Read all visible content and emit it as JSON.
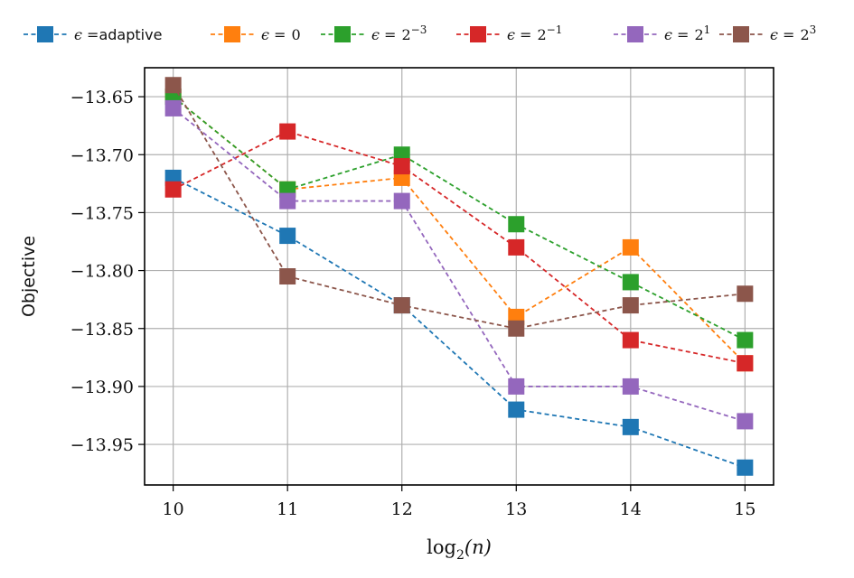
{
  "chart_data": {
    "type": "line",
    "xlabel": "log",
    "xlabel_sub": "2",
    "xlabel_arg": "(n)",
    "ylabel": "Objective",
    "xlim": [
      9.75,
      15.25
    ],
    "ylim": [
      -13.985,
      -13.625
    ],
    "x": [
      10,
      11,
      12,
      13,
      14,
      15
    ],
    "xticks": [
      "10",
      "11",
      "12",
      "13",
      "14",
      "15"
    ],
    "yticks": [
      -13.65,
      -13.7,
      -13.75,
      -13.8,
      -13.85,
      -13.9,
      -13.95
    ],
    "ytick_labels": [
      "−13.65",
      "−13.70",
      "−13.75",
      "−13.80",
      "−13.85",
      "−13.90",
      "−13.95"
    ],
    "grid": true,
    "legend_position": "top, outside plot",
    "series": [
      {
        "legend_prefix": "ϵ =",
        "legend_value": "adaptive",
        "color": "#1f77b4",
        "values": [
          -13.72,
          -13.77,
          -13.83,
          -13.92,
          -13.935,
          -13.97
        ]
      },
      {
        "legend_prefix": "ϵ =",
        "legend_value": "0",
        "color": "#ff7f0e",
        "values": [
          -13.65,
          -13.73,
          -13.72,
          -13.84,
          -13.78,
          -13.88
        ]
      },
      {
        "legend_prefix": "ϵ =",
        "legend_value": "2",
        "legend_sup": "−3",
        "color": "#2ca02c",
        "values": [
          -13.65,
          -13.73,
          -13.7,
          -13.76,
          -13.81,
          -13.86
        ]
      },
      {
        "legend_prefix": "ϵ =",
        "legend_value": "2",
        "legend_sup": "−1",
        "color": "#d62728",
        "values": [
          -13.73,
          -13.68,
          -13.71,
          -13.78,
          -13.86,
          -13.88
        ]
      },
      {
        "legend_prefix": "ϵ =",
        "legend_value": "2",
        "legend_sup": "1",
        "color": "#9467bd",
        "values": [
          -13.66,
          -13.74,
          -13.74,
          -13.9,
          -13.9,
          -13.93
        ]
      },
      {
        "legend_prefix": "ϵ =",
        "legend_value": "2",
        "legend_sup": "3",
        "color": "#8c564b",
        "values": [
          -13.64,
          -13.805,
          -13.83,
          -13.85,
          -13.83,
          -13.82
        ]
      }
    ]
  }
}
